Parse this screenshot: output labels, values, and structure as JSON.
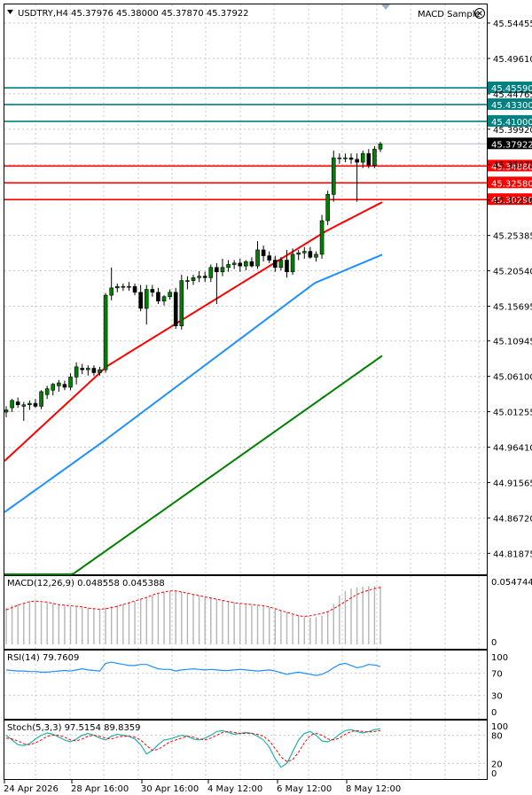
{
  "header": {
    "symbol_info": "USDTRY,H4  45.37976 45.38000 45.37870 45.37922",
    "indicator_name": "MACD Sample"
  },
  "price_axis": [
    "45.54455",
    "45.49610",
    "45.44765",
    "45.39920",
    "45.35075",
    "45.30230",
    "45.25385",
    "45.20540",
    "45.15695",
    "45.10945",
    "45.06100",
    "45.01255",
    "44.96410",
    "44.91565",
    "44.86720",
    "44.81875"
  ],
  "current_price": "45.37922",
  "levels": {
    "resistance": [
      "45.45590",
      "45.43300",
      "45.41000"
    ],
    "support": [
      "45.34880",
      "45.32580",
      "45.30290"
    ],
    "resistance_color": "#008080",
    "support_color": "#ff0000"
  },
  "macd": {
    "label": "MACD(12,26,9) 0.048558 0.045388",
    "max_label": "0.054744",
    "zero_label": "0"
  },
  "rsi": {
    "label": "RSI(14) 79.7609",
    "ticks": [
      "100",
      "70",
      "30",
      "0"
    ]
  },
  "stoch": {
    "label": "Stoch(5,3,3) 97.5154 89.8359",
    "ticks": [
      "100",
      "80",
      "20",
      "0"
    ]
  },
  "time_axis": [
    "24 Apr 2026",
    "28 Apr 16:00",
    "30 Apr 16:00",
    "4 May 12:00",
    "6 May 12:00",
    "8 May 12:00"
  ],
  "chart_data": {
    "type": "candlestick",
    "symbol": "USDTRY",
    "timeframe": "H4",
    "ylim": [
      44.79,
      45.57
    ],
    "candles": [
      [
        45.012,
        45.02,
        45.005,
        45.015
      ],
      [
        45.018,
        45.03,
        45.012,
        45.028
      ],
      [
        45.026,
        45.032,
        45.018,
        45.022
      ],
      [
        45.02,
        45.026,
        45.0,
        45.022
      ],
      [
        45.022,
        45.028,
        45.015,
        45.024
      ],
      [
        45.024,
        45.03,
        45.018,
        45.02
      ],
      [
        45.02,
        45.042,
        45.016,
        45.04
      ],
      [
        45.036,
        45.048,
        45.03,
        45.044
      ],
      [
        45.042,
        45.052,
        45.035,
        45.05
      ],
      [
        45.048,
        45.056,
        45.04,
        45.052
      ],
      [
        45.05,
        45.055,
        45.042,
        45.046
      ],
      [
        45.046,
        45.065,
        45.042,
        45.06
      ],
      [
        45.06,
        45.08,
        45.05,
        45.074
      ],
      [
        45.072,
        45.078,
        45.064,
        45.07
      ],
      [
        45.07,
        45.076,
        45.062,
        45.072
      ],
      [
        45.072,
        45.076,
        45.062,
        45.066
      ],
      [
        45.066,
        45.074,
        45.062,
        45.07
      ],
      [
        45.07,
        45.175,
        45.066,
        45.172
      ],
      [
        45.172,
        45.21,
        45.165,
        45.182
      ],
      [
        45.182,
        45.188,
        45.176,
        45.184
      ],
      [
        45.184,
        45.188,
        45.178,
        45.184
      ],
      [
        45.184,
        45.19,
        45.178,
        45.184
      ],
      [
        45.184,
        45.188,
        45.172,
        45.176
      ],
      [
        45.176,
        45.186,
        45.15,
        45.154
      ],
      [
        45.154,
        45.186,
        45.132,
        45.18
      ],
      [
        45.18,
        45.186,
        45.17,
        45.176
      ],
      [
        45.176,
        45.182,
        45.16,
        45.164
      ],
      [
        45.164,
        45.172,
        45.158,
        45.17
      ],
      [
        45.17,
        45.18,
        45.166,
        45.176
      ],
      [
        45.176,
        45.182,
        45.126,
        45.13
      ],
      [
        45.13,
        45.2,
        45.125,
        45.192
      ],
      [
        45.192,
        45.198,
        45.18,
        45.192
      ],
      [
        45.192,
        45.2,
        45.186,
        45.196
      ],
      [
        45.196,
        45.205,
        45.19,
        45.198
      ],
      [
        45.198,
        45.204,
        45.19,
        45.196
      ],
      [
        45.196,
        45.214,
        45.19,
        45.21
      ],
      [
        45.21,
        45.216,
        45.16,
        45.204
      ],
      [
        45.204,
        45.222,
        45.198,
        45.21
      ],
      [
        45.21,
        45.22,
        45.204,
        45.214
      ],
      [
        45.214,
        45.22,
        45.208,
        45.216
      ],
      [
        45.216,
        45.222,
        45.204,
        45.212
      ],
      [
        45.212,
        45.22,
        45.206,
        45.218
      ],
      [
        45.218,
        45.224,
        45.21,
        45.212
      ],
      [
        45.212,
        45.246,
        45.208,
        45.234
      ],
      [
        45.234,
        45.24,
        45.218,
        45.226
      ],
      [
        45.226,
        45.232,
        45.216,
        45.22
      ],
      [
        45.22,
        45.226,
        45.204,
        45.21
      ],
      [
        45.21,
        45.224,
        45.206,
        45.22
      ],
      [
        45.22,
        45.234,
        45.196,
        45.204
      ],
      [
        45.204,
        45.236,
        45.2,
        45.228
      ],
      [
        45.228,
        45.234,
        45.22,
        45.23
      ],
      [
        45.23,
        45.238,
        45.222,
        45.232
      ],
      [
        45.232,
        45.238,
        45.222,
        45.224
      ],
      [
        45.224,
        45.232,
        45.218,
        45.228
      ],
      [
        45.228,
        45.282,
        45.222,
        45.274
      ],
      [
        45.274,
        45.315,
        45.268,
        45.31
      ],
      [
        45.31,
        45.37,
        45.3,
        45.36
      ],
      [
        45.36,
        45.366,
        45.352,
        45.36
      ],
      [
        45.36,
        45.366,
        45.354,
        45.36
      ],
      [
        45.36,
        45.366,
        45.352,
        45.358
      ],
      [
        45.358,
        45.366,
        45.3,
        45.354
      ],
      [
        45.354,
        45.37,
        45.346,
        45.366
      ],
      [
        45.366,
        45.372,
        45.346,
        45.35
      ],
      [
        45.35,
        45.376,
        45.346,
        45.372
      ],
      [
        45.372,
        45.382,
        45.368,
        45.379
      ]
    ],
    "ma_red": {
      "start": 44.945,
      "end": 45.3,
      "color": "#ff0000"
    },
    "ma_blue": {
      "start": 44.875,
      "end": 45.228,
      "color": "#1e90ff"
    },
    "ma_green": {
      "start": 44.79,
      "end": 45.09,
      "color": "#008000"
    }
  }
}
